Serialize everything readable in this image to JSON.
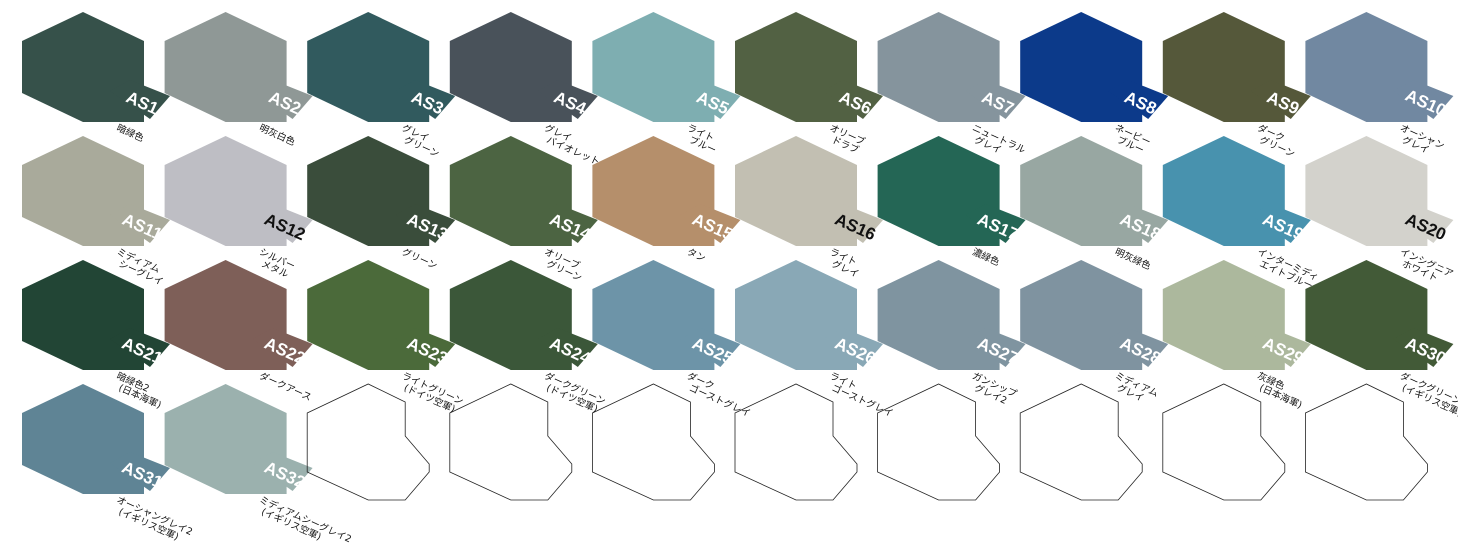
{
  "swatches": [
    {
      "code": "AS1",
      "name": [
        "暗緑色"
      ],
      "color": "#36514a",
      "text_color": "#ffffff"
    },
    {
      "code": "AS2",
      "name": [
        "明灰白色"
      ],
      "color": "#8f9896",
      "text_color": "#ffffff"
    },
    {
      "code": "AS3",
      "name": [
        "グレイ",
        "グリーン"
      ],
      "color": "#315a5e",
      "text_color": "#ffffff"
    },
    {
      "code": "AS4",
      "name": [
        "グレイ",
        "バイオレット"
      ],
      "color": "#49525a",
      "text_color": "#ffffff"
    },
    {
      "code": "AS5",
      "name": [
        "ライト",
        "ブルー"
      ],
      "color": "#7eaeb1",
      "text_color": "#ffffff"
    },
    {
      "code": "AS6",
      "name": [
        "オリーブ",
        "ドラブ"
      ],
      "color": "#526143",
      "text_color": "#ffffff"
    },
    {
      "code": "AS7",
      "name": [
        "ニュートラル",
        "グレイ"
      ],
      "color": "#85949d",
      "text_color": "#ffffff"
    },
    {
      "code": "AS8",
      "name": [
        "ネービー",
        "ブルー"
      ],
      "color": "#0c3a8a",
      "text_color": "#ffffff"
    },
    {
      "code": "AS9",
      "name": [
        "ダーク",
        "グリーン"
      ],
      "color": "#55583a",
      "text_color": "#ffffff"
    },
    {
      "code": "AS10",
      "name": [
        "オーシャン",
        "グレイ"
      ],
      "color": "#7188a1",
      "text_color": "#ffffff"
    },
    {
      "code": "AS11",
      "name": [
        "ミディアム",
        "シーグレイ"
      ],
      "color": "#a9aa9b",
      "text_color": "#ffffff"
    },
    {
      "code": "AS12",
      "name": [
        "シルバー",
        "メタル"
      ],
      "color": "#bebec4",
      "text_color": "#111111"
    },
    {
      "code": "AS13",
      "name": [
        "グリーン"
      ],
      "color": "#3a4d3b",
      "text_color": "#ffffff"
    },
    {
      "code": "AS14",
      "name": [
        "オリーブ",
        "グリーン"
      ],
      "color": "#4c6442",
      "text_color": "#ffffff"
    },
    {
      "code": "AS15",
      "name": [
        "タン"
      ],
      "color": "#b58f6b",
      "text_color": "#ffffff"
    },
    {
      "code": "AS16",
      "name": [
        "ライト",
        "グレイ"
      ],
      "color": "#c2bfb2",
      "text_color": "#111111"
    },
    {
      "code": "AS17",
      "name": [
        "濃緑色"
      ],
      "color": "#246655",
      "text_color": "#ffffff"
    },
    {
      "code": "AS18",
      "name": [
        "明灰緑色"
      ],
      "color": "#98a7a2",
      "text_color": "#ffffff"
    },
    {
      "code": "AS19",
      "name": [
        "インターミディ",
        "エイトブルー"
      ],
      "color": "#4892ae",
      "text_color": "#ffffff"
    },
    {
      "code": "AS20",
      "name": [
        "インシグニア",
        "ホワイト"
      ],
      "color": "#d3d2cc",
      "text_color": "#111111"
    },
    {
      "code": "AS21",
      "name": [
        "暗緑色2",
        "(日本海軍)"
      ],
      "color": "#224535",
      "text_color": "#ffffff"
    },
    {
      "code": "AS22",
      "name": [
        "ダークアース"
      ],
      "color": "#7e5f58",
      "text_color": "#ffffff"
    },
    {
      "code": "AS23",
      "name": [
        "ライトグリーン",
        "(ドイツ空軍)"
      ],
      "color": "#4b6a3a",
      "text_color": "#ffffff"
    },
    {
      "code": "AS24",
      "name": [
        "ダークグリーン",
        "(ドイツ空軍)"
      ],
      "color": "#3b5739",
      "text_color": "#ffffff"
    },
    {
      "code": "AS25",
      "name": [
        "ダーク",
        "ゴーストグレイ"
      ],
      "color": "#6d94a8",
      "text_color": "#ffffff"
    },
    {
      "code": "AS26",
      "name": [
        "ライト",
        "ゴーストグレイ"
      ],
      "color": "#89a8b6",
      "text_color": "#ffffff"
    },
    {
      "code": "AS27",
      "name": [
        "ガンシップ",
        "グレイ2"
      ],
      "color": "#7f94a0",
      "text_color": "#ffffff"
    },
    {
      "code": "AS28",
      "name": [
        "ミディアム",
        "グレイ"
      ],
      "color": "#7f93a0",
      "text_color": "#ffffff"
    },
    {
      "code": "AS29",
      "name": [
        "灰緑色",
        "(日本海軍)"
      ],
      "color": "#acb89d",
      "text_color": "#ffffff"
    },
    {
      "code": "AS30",
      "name": [
        "ダークグリーン2",
        "(イギリス空軍)"
      ],
      "color": "#425a37",
      "text_color": "#ffffff"
    },
    {
      "code": "AS31",
      "name": [
        "オーシャングレイ2",
        "(イギリス空軍)"
      ],
      "color": "#5f8495",
      "text_color": "#ffffff"
    },
    {
      "code": "AS32",
      "name": [
        "ミディアムシーグレイ2",
        "(イギリス空軍)"
      ],
      "color": "#9bb1ae",
      "text_color": "#ffffff"
    }
  ],
  "empty_slots": 8
}
